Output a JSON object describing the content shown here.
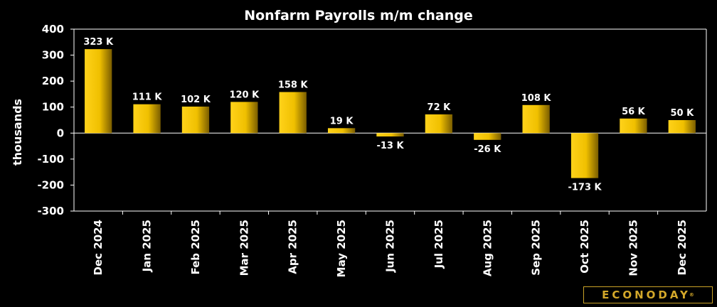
{
  "chart_data": {
    "type": "bar",
    "title": "Nonfarm Payrolls m/m change",
    "ylabel": "thousands",
    "xlabel": "",
    "ylim": [
      -300,
      400
    ],
    "yticks": [
      400,
      300,
      200,
      100,
      0,
      -100,
      -200,
      -300
    ],
    "grid": false,
    "categories": [
      "Dec 2024",
      "Jan 2025",
      "Feb 2025",
      "Mar 2025",
      "Apr 2025",
      "May 2025",
      "Jun 2025",
      "Jul 2025",
      "Aug 2025",
      "Sep 2025",
      "Oct 2025",
      "Nov 2025",
      "Dec 2025"
    ],
    "values": [
      323,
      111,
      102,
      120,
      158,
      19,
      -13,
      72,
      -26,
      108,
      -173,
      56,
      50
    ],
    "data_labels": [
      "323 K",
      "111 K",
      "102 K",
      "120 K",
      "158 K",
      "19 K",
      "-13 K",
      "72 K",
      "-26 K",
      "108 K",
      "-173 K",
      "56 K",
      "50 K"
    ],
    "bar_color": "#f0c000"
  },
  "brand": {
    "logo_text": "ECONODAY",
    "logo_mark": "®",
    "logo_color": "#d4a82a"
  }
}
